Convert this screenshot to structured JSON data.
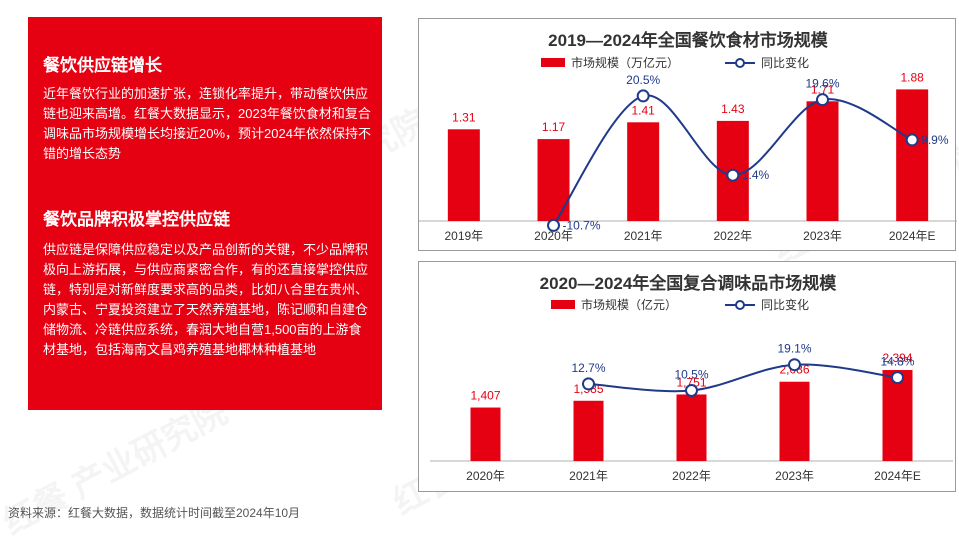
{
  "left_panel": {
    "heading_1": "餐饮供应链增长",
    "paragraph_1": "近年餐饮行业的加速扩张，连锁化率提升，带动餐饮供应链也迎来高增。红餐大数据显示，2023年餐饮食材和复合调味品市场规模增长均接近20%，预计2024年依然保持不错的增长态势",
    "heading_2": "餐饮品牌积极掌控供应链",
    "paragraph_2": "供应链是保障供应稳定以及产品创新的关键，不少品牌积极向上游拓展，与供应商紧密合作，有的还直接掌控供应链，特别是对新鲜度要求高的品类，比如八合里在贵州、内蒙古、宁夏投资建立了天然养殖基地，陈记顺和自建仓储物流、冷链供应系统，春润大地自营1,500亩的上游食材基地，包括海南文昌鸡养殖基地椰林种植基地"
  },
  "footer": {
    "source": "资料来源：红餐大数据，数据统计时间截至2024年10月"
  },
  "watermark": {
    "text": "红餐 产业研究院"
  },
  "colors": {
    "accent": "#e50012",
    "line": "#1f3a8a",
    "gridline": "#b0b0b0"
  },
  "chart_data": [
    {
      "type": "bar",
      "title": "2019—2024年全国餐饮食材市场规模",
      "categories": [
        "2019年",
        "2020年",
        "2021年",
        "2022年",
        "2023年",
        "2024年E"
      ],
      "series": [
        {
          "name": "市场规模（万亿元）",
          "type": "bar",
          "values": [
            1.31,
            1.17,
            1.41,
            1.43,
            1.71,
            1.88
          ],
          "labels": [
            "1.31",
            "1.17",
            "1.41",
            "1.43",
            "1.71",
            "1.88"
          ]
        },
        {
          "name": "同比变化",
          "type": "line",
          "values": [
            null,
            -10.7,
            20.5,
            1.4,
            19.6,
            9.9
          ],
          "labels": [
            "",
            "-10.7%",
            "20.5%",
            "1.4%",
            "19.6%",
            "9.9%"
          ]
        }
      ],
      "legend_position": "top-center",
      "grid": false
    },
    {
      "type": "bar",
      "title": "2020—2024年全国复合调味品市场规模",
      "categories": [
        "2020年",
        "2021年",
        "2022年",
        "2023年",
        "2024年E"
      ],
      "series": [
        {
          "name": "市场规模（亿元）",
          "type": "bar",
          "values": [
            1407,
            1585,
            1751,
            2086,
            2394
          ],
          "labels": [
            "1,407",
            "1,585",
            "1,751",
            "2,086",
            "2,394"
          ]
        },
        {
          "name": "同比变化",
          "type": "line",
          "values": [
            null,
            12.7,
            10.5,
            19.1,
            14.8
          ],
          "labels": [
            "",
            "12.7%",
            "10.5%",
            "19.1%",
            "14.8%"
          ]
        }
      ],
      "legend_position": "top-center",
      "grid": false
    }
  ]
}
